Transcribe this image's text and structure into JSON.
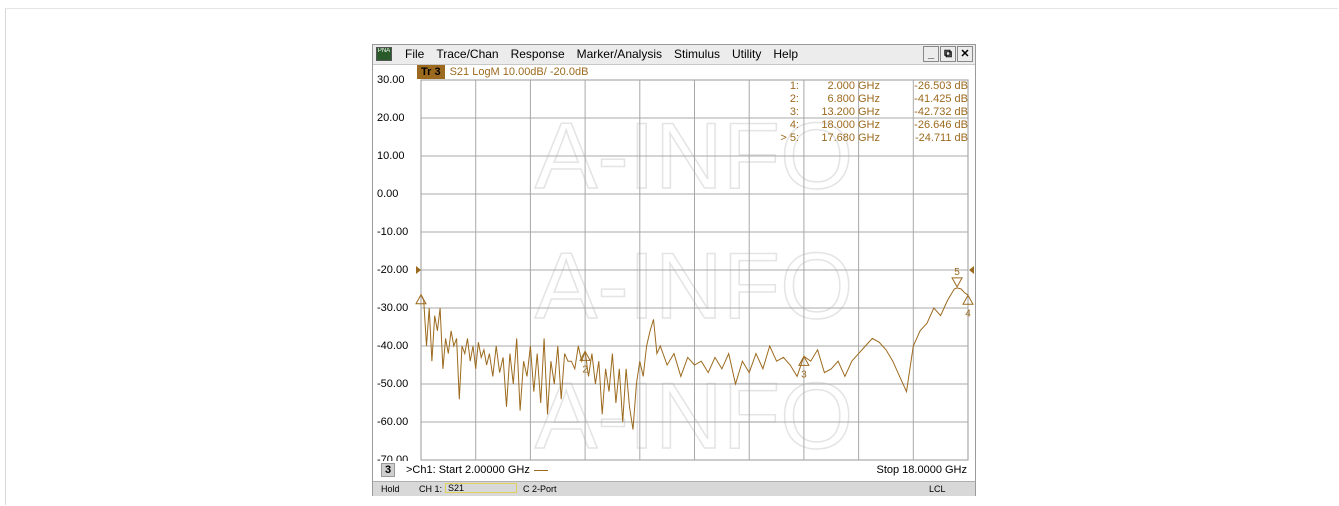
{
  "window": {
    "logo_text": "PNA",
    "menus": [
      "File",
      "Trace/Chan",
      "Response",
      "Marker/Analysis",
      "Stimulus",
      "Utility",
      "Help"
    ],
    "controls": {
      "minimize": "_",
      "restore": "⧉",
      "close": "✕"
    }
  },
  "trace": {
    "badge": "Tr 3",
    "title": "S21 LogM 10.00dB/  -20.0dB",
    "color": "#9c6a1e"
  },
  "markers": [
    {
      "label": "1:",
      "freq": "2.000",
      "unit": "GHz",
      "value": "-26.503 dB"
    },
    {
      "label": "2:",
      "freq": "6.800",
      "unit": "GHz",
      "value": "-41.425 dB"
    },
    {
      "label": "3:",
      "freq": "13.200",
      "unit": "GHz",
      "value": "-42.732 dB"
    },
    {
      "label": "4:",
      "freq": "18.000",
      "unit": "GHz",
      "value": "-26.646 dB"
    },
    {
      "label": "> 5:",
      "freq": "17.680",
      "unit": "GHz",
      "value": "-24.711 dB"
    }
  ],
  "chart_data": {
    "type": "line",
    "x_unit": "GHz",
    "y_unit": "dB",
    "xlim": [
      2.0,
      18.0
    ],
    "ylim": [
      -70,
      30
    ],
    "y_ticks": [
      "30.00",
      "20.00",
      "10.00",
      "0.00",
      "-10.00",
      "-20.00",
      "-30.00",
      "-40.00",
      "-50.00",
      "-60.00",
      "-70.00"
    ],
    "reference_level": -20,
    "grid": true,
    "series": [
      {
        "x": [
          2.0,
          2.08,
          2.16,
          2.24,
          2.32,
          2.4,
          2.48,
          2.56,
          2.64,
          2.72,
          2.8,
          2.88,
          2.96,
          3.04,
          3.12,
          3.2,
          3.28,
          3.36,
          3.44,
          3.52,
          3.6,
          3.68,
          3.76,
          3.84,
          3.92,
          4.0,
          4.1,
          4.2,
          4.3,
          4.4,
          4.5,
          4.6,
          4.7,
          4.8,
          4.9,
          5.0,
          5.1,
          5.2,
          5.3,
          5.4,
          5.5,
          5.6,
          5.7,
          5.8,
          5.9,
          6.0,
          6.1,
          6.2,
          6.3,
          6.4,
          6.5,
          6.6,
          6.7,
          6.8,
          6.9,
          7.0,
          7.1,
          7.2,
          7.3,
          7.4,
          7.5,
          7.6,
          7.7,
          7.8,
          7.9,
          8.0,
          8.1,
          8.2,
          8.3,
          8.4,
          8.5,
          8.6,
          8.7,
          8.8,
          8.9,
          9.0,
          9.2,
          9.4,
          9.6,
          9.8,
          10.0,
          10.2,
          10.4,
          10.6,
          10.8,
          11.0,
          11.2,
          11.4,
          11.6,
          11.8,
          12.0,
          12.2,
          12.4,
          12.6,
          12.8,
          13.0,
          13.2,
          13.4,
          13.6,
          13.8,
          14.0,
          14.2,
          14.4,
          14.6,
          14.8,
          15.0,
          15.2,
          15.4,
          15.6,
          15.8,
          16.0,
          16.2,
          16.4,
          16.6,
          16.8,
          17.0,
          17.2,
          17.4,
          17.6,
          17.68,
          17.8,
          17.9,
          18.0
        ],
        "y": [
          -26.5,
          -28,
          -40,
          -30,
          -44,
          -32,
          -36,
          -30,
          -46,
          -38,
          -42,
          -36,
          -40,
          -38,
          -54,
          -40,
          -42,
          -38,
          -44,
          -40,
          -46,
          -39,
          -43,
          -41,
          -45,
          -42,
          -48,
          -40,
          -47,
          -43,
          -56,
          -42,
          -50,
          -38,
          -57,
          -44,
          -48,
          -40,
          -52,
          -42,
          -55,
          -38,
          -58,
          -44,
          -50,
          -40,
          -54,
          -42,
          -44,
          -44,
          -46,
          -40,
          -44,
          -41.4,
          -48,
          -42,
          -50,
          -44,
          -58,
          -46,
          -52,
          -42,
          -55,
          -46,
          -60,
          -46,
          -56,
          -62,
          -50,
          -44,
          -48,
          -40,
          -36,
          -33,
          -42,
          -40,
          -45,
          -42,
          -48,
          -43,
          -45,
          -44,
          -47,
          -43,
          -46,
          -42,
          -50,
          -44,
          -47,
          -42,
          -46,
          -40,
          -44,
          -43,
          -45,
          -48,
          -42.7,
          -44,
          -41,
          -47,
          -46,
          -44,
          -48,
          -44,
          -42,
          -40,
          -38,
          -39,
          -41,
          -44,
          -48,
          -52,
          -40,
          -36,
          -34,
          -30,
          -32,
          -28,
          -25,
          -24.7,
          -25,
          -26,
          -26.6
        ]
      }
    ],
    "markers": [
      {
        "id": "1",
        "x": 2.0,
        "y": -26.503
      },
      {
        "id": "2",
        "x": 6.8,
        "y": -41.425
      },
      {
        "id": "3",
        "x": 13.2,
        "y": -42.732
      },
      {
        "id": "4",
        "x": 18.0,
        "y": -26.646
      },
      {
        "id": "5",
        "x": 17.68,
        "y": -24.711
      }
    ]
  },
  "footer": {
    "channel_number": "3",
    "start_text": ">Ch1: Start  2.00000 GHz",
    "stop_text": "Stop  18.0000 GHz"
  },
  "statusbar": {
    "hold": "Hold",
    "channel": "CH 1:",
    "measurement": "S21",
    "port": "C  2-Port",
    "lcl": "LCL"
  },
  "watermark": "A-INFO"
}
